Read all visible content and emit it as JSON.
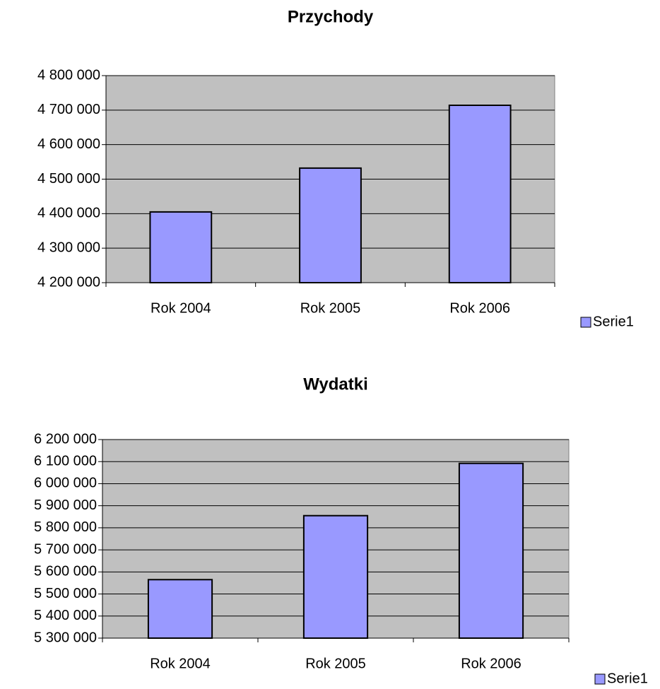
{
  "chart_data": [
    {
      "type": "bar",
      "title": "Przychody",
      "categories": [
        "Rok 2004",
        "Rok 2005",
        "Rok 2006"
      ],
      "series": [
        {
          "name": "Serie1",
          "color": "#9999ff",
          "values": [
            4405000,
            4532000,
            4714000
          ]
        }
      ],
      "ylim": [
        4200000,
        4800000
      ],
      "yticks": [
        {
          "value": 4200000,
          "label": "4 200 000"
        },
        {
          "value": 4300000,
          "label": "4 300 000"
        },
        {
          "value": 4400000,
          "label": "4 400 000"
        },
        {
          "value": 4500000,
          "label": "4 500 000"
        },
        {
          "value": 4600000,
          "label": "4 600 000"
        },
        {
          "value": 4700000,
          "label": "4 700 000"
        },
        {
          "value": 4800000,
          "label": "4 800 000"
        }
      ],
      "grid": true,
      "legend": "right"
    },
    {
      "type": "bar",
      "title": "Wydatki",
      "categories": [
        "Rok 2004",
        "Rok 2005",
        "Rok 2006"
      ],
      "series": [
        {
          "name": "Serie1",
          "color": "#9999ff",
          "values": [
            5565000,
            5855000,
            6092000
          ]
        }
      ],
      "ylim": [
        5300000,
        6200000
      ],
      "yticks": [
        {
          "value": 5300000,
          "label": "5 300 000"
        },
        {
          "value": 5400000,
          "label": "5 400 000"
        },
        {
          "value": 5500000,
          "label": "5 500 000"
        },
        {
          "value": 5600000,
          "label": "5 600 000"
        },
        {
          "value": 5700000,
          "label": "5 700 000"
        },
        {
          "value": 5800000,
          "label": "5 800 000"
        },
        {
          "value": 5900000,
          "label": "5 900 000"
        },
        {
          "value": 6000000,
          "label": "6 000 000"
        },
        {
          "value": 6100000,
          "label": "6 100 000"
        },
        {
          "value": 6200000,
          "label": "6 200 000"
        }
      ],
      "grid": true,
      "legend": "right"
    }
  ]
}
